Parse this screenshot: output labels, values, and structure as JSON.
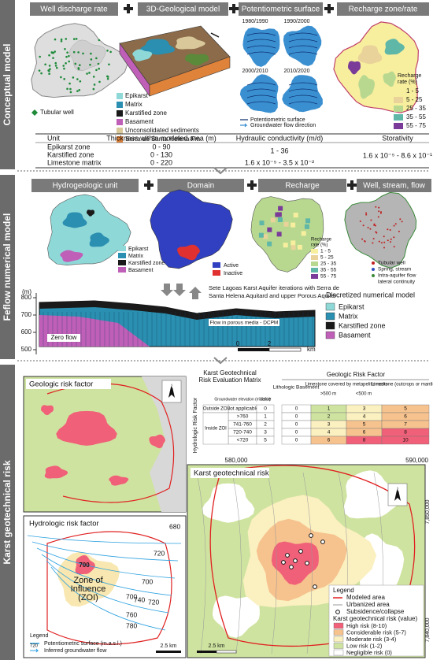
{
  "conceptual": {
    "label": "Conceptual model",
    "headers": [
      "Well discharge rate",
      "3D-Geological model",
      "Potentiometric surface",
      "Recharge zone/rate"
    ],
    "tubular_well": "Tubular well",
    "geology_legend": [
      "Epikarst",
      "Matrix",
      "Karstified zone",
      "Basament",
      "Unconsolidated sediments",
      "Serra de Santa Helena Fm."
    ],
    "potentiometric_years": [
      "1980/1990",
      "1990/2000",
      "2000/2010",
      "2010/2020"
    ],
    "potentiometric_legend": [
      "Potentiometric surface",
      "Groundwater flow direction"
    ],
    "recharge_legend_title": [
      "Recharge",
      "rate (%)"
    ],
    "recharge_classes": [
      "1 - 5",
      "5 - 25",
      "25 - 35",
      "35 - 55",
      "55 - 75"
    ],
    "table": {
      "header": [
        "Unit",
        "Thickness within modeled area (m)",
        "Hydraulic conductivity (m/d)",
        "Storativity"
      ],
      "rows": [
        [
          "Epikarst zone",
          "0 - 90"
        ],
        [
          "Karstified zone",
          "0 - 130"
        ],
        [
          "Limestone matrix",
          "0 - 220"
        ]
      ],
      "conductivity": [
        "1 - 36",
        "1.6 x 10⁻⁵ - 3.5 x 10⁻²"
      ],
      "storativity": "1.6 x 10⁻⁵ - 8.6 x 10⁻¹"
    }
  },
  "feflow": {
    "label": "Feflow numerical model",
    "headers": [
      "Hydrogeologic unit",
      "Domain",
      "Recharge",
      "Well, stream, flow"
    ],
    "unit_legend": [
      "Epikarst",
      "Matrix",
      "Karstified zone",
      "Basament"
    ],
    "domain_legend": [
      "Active",
      "Inactive"
    ],
    "recharge_legend_title": [
      "Recharge",
      "rate (%)"
    ],
    "recharge_classes": [
      "1 - 5",
      "5 - 25",
      "25 - 35",
      "35 - 55",
      "55 - 75"
    ],
    "well_legend": [
      "Tubular well",
      "Spring, stream",
      "Intra-aquifer flow",
      "lateral continuity"
    ],
    "section_title": [
      "Sete Lagoas Karst Aquifer iterations with Serra de",
      "Santa Helena Aquitard and upper Porous Aquifer"
    ],
    "y_unit": "(m)",
    "y_ticks": [
      "800",
      "700",
      "600",
      "500"
    ],
    "flow_label": "Flow in porous media - DCPM",
    "zero_flow": "Zero flow",
    "scale": [
      "0",
      "2",
      "km"
    ],
    "discretized_title": "Discretized numerical model",
    "discretized_legend": [
      "Epikarst",
      "Matrix",
      "Karstified zone",
      "Basament"
    ]
  },
  "risk": {
    "label": "Karst geotechnical risk",
    "geologic_title": "Geologic risk factor",
    "hydrologic_title": "Hydrologic risk factor",
    "north": "N",
    "contour_labels": [
      "680",
      "720",
      "700",
      "720",
      "700",
      "740",
      "760",
      "780"
    ],
    "zoi_center": "700",
    "zoi_label": [
      "Zone of",
      "Influence",
      "(ZOI)"
    ],
    "hydro_legend": {
      "title": "Legend",
      "swatch": "720",
      "items": [
        "Potentiometric surface (m.a.s.l.)",
        "Inferred groundwater flow"
      ]
    },
    "hydro_scale": "2.5 km",
    "matrix": {
      "title": [
        "Karst Geotechnical",
        "Risk Evaluation Matrix"
      ],
      "geologic_header": "Geologic Risk Factor",
      "hydrologic_header": "Hydrologic Risk Factor",
      "columns": [
        "Lithologic Basement",
        "Limestone covered by metapelitic rocks",
        "Limestone (outcrops or mantled)"
      ],
      "sub_columns": [
        ">500 m",
        "<500 m"
      ],
      "row_header": [
        "Groundwater elevation (m.a.s.l.)",
        "Value"
      ],
      "zones": [
        "Outside ZOI",
        "Inside ZOI"
      ],
      "rows": [
        [
          "Not applicable",
          "0",
          "0",
          "1",
          "3",
          "5"
        ],
        [
          ">760",
          "1",
          "0",
          "2",
          "4",
          "6"
        ],
        [
          "741-760",
          "2",
          "0",
          "3",
          "5",
          "7"
        ],
        [
          "720-740",
          "3",
          "0",
          "4",
          "6",
          "8"
        ],
        [
          "<720",
          "5",
          "0",
          "6",
          "8",
          "10"
        ]
      ]
    },
    "map": {
      "title": "Karst geotechnical risk",
      "eastings": [
        "580,000",
        "590,000"
      ],
      "northings": [
        "7,850,000",
        "7,840,000"
      ],
      "scale": "2.5 km",
      "legend_title": "Legend",
      "legend_items": [
        "Modeled area",
        "Urbanized area",
        "Subsidence/collapse"
      ],
      "risk_title": "Karst geotechnical risk (value)",
      "risk_classes": [
        "High risk (8-10)",
        "Considerable risk (5-7)",
        "Moderate risk (3-4)",
        "Low risk (1-2)",
        "Negligible risk (0)"
      ]
    }
  }
}
